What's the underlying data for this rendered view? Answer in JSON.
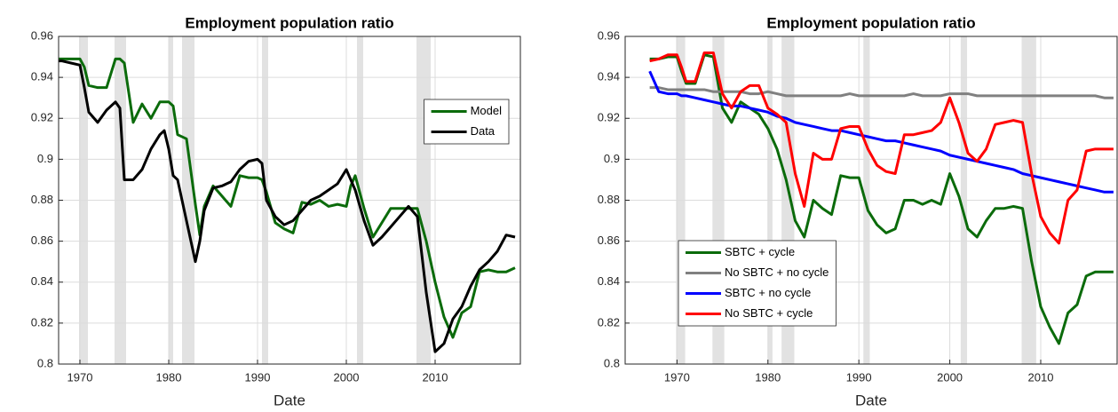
{
  "chart_data": [
    {
      "type": "line",
      "title": "Employment population ratio",
      "xlabel": "Date",
      "x": [
        1967.6,
        1968,
        1969,
        1970,
        1970.5,
        1971,
        1972,
        1973,
        1974,
        1974.5,
        1975,
        1976,
        1977,
        1978,
        1979,
        1979.5,
        1980,
        1980.5,
        1981,
        1982,
        1983,
        1983.5,
        1984,
        1985,
        1986,
        1987,
        1988,
        1989,
        1990,
        1990.5,
        1991,
        1992,
        1993,
        1994,
        1995,
        1996,
        1997,
        1998,
        1999,
        2000,
        2000.5,
        2001,
        2002,
        2003,
        2004,
        2005,
        2006,
        2007,
        2008,
        2009,
        2010,
        2011,
        2012,
        2013,
        2014,
        2015,
        2016,
        2017,
        2018,
        2019
      ],
      "series": [
        {
          "name": "Model",
          "color": "#0b6b0b",
          "values": [
            0.949,
            0.949,
            0.949,
            0.949,
            0.945,
            0.936,
            0.935,
            0.935,
            0.949,
            0.949,
            0.947,
            0.918,
            0.927,
            0.92,
            0.928,
            0.928,
            0.928,
            0.926,
            0.912,
            0.91,
            0.878,
            0.863,
            0.877,
            0.887,
            0.882,
            0.877,
            0.892,
            0.891,
            0.891,
            0.89,
            0.884,
            0.869,
            0.866,
            0.864,
            0.879,
            0.878,
            0.88,
            0.877,
            0.878,
            0.877,
            0.887,
            0.892,
            0.876,
            0.862,
            0.869,
            0.876,
            0.876,
            0.876,
            0.876,
            0.86,
            0.84,
            0.823,
            0.813,
            0.825,
            0.828,
            0.845,
            0.846,
            0.845,
            0.845,
            0.847
          ]
        },
        {
          "name": "Data",
          "color": "#000000",
          "values": [
            0.948,
            0.948,
            0.947,
            0.946,
            0.935,
            0.923,
            0.918,
            0.924,
            0.928,
            0.925,
            0.89,
            0.89,
            0.895,
            0.905,
            0.912,
            0.914,
            0.905,
            0.892,
            0.89,
            0.87,
            0.85,
            0.86,
            0.875,
            0.886,
            0.887,
            0.889,
            0.895,
            0.899,
            0.9,
            0.898,
            0.88,
            0.872,
            0.868,
            0.87,
            0.875,
            0.88,
            0.882,
            0.885,
            0.888,
            0.895,
            0.89,
            0.885,
            0.87,
            0.858,
            0.862,
            0.867,
            0.872,
            0.877,
            0.872,
            0.835,
            0.806,
            0.81,
            0.822,
            0.828,
            0.838,
            0.846,
            0.85,
            0.855,
            0.863,
            0.862
          ]
        }
      ],
      "shaded_periods": [
        [
          1969.9,
          1970.9
        ],
        [
          1973.9,
          1975.2
        ],
        [
          1980.0,
          1980.5
        ],
        [
          1981.5,
          1982.9
        ],
        [
          1990.5,
          1991.2
        ],
        [
          2001.2,
          2001.9
        ],
        [
          2007.9,
          2009.5
        ]
      ],
      "xlim": [
        1967.6,
        2019.6
      ],
      "ylim": [
        0.8,
        0.96
      ],
      "xticks": [
        1970,
        1980,
        1990,
        2000,
        2010
      ],
      "yticks": [
        0.8,
        0.82,
        0.84,
        0.86,
        0.88,
        0.9,
        0.92,
        0.94,
        0.96
      ],
      "grid": true,
      "legend": "northeast"
    },
    {
      "type": "line",
      "title": "Employment population ratio",
      "xlabel": "Date",
      "x": [
        1967,
        1968,
        1969,
        1970,
        1970.5,
        1971,
        1972,
        1973,
        1974,
        1975,
        1976,
        1977,
        1978,
        1979,
        1980,
        1981,
        1982,
        1983,
        1984,
        1985,
        1986,
        1987,
        1988,
        1989,
        1990,
        1991,
        1992,
        1993,
        1994,
        1995,
        1996,
        1997,
        1998,
        1999,
        2000,
        2001,
        2002,
        2003,
        2004,
        2005,
        2006,
        2007,
        2008,
        2009,
        2010,
        2011,
        2012,
        2013,
        2014,
        2015,
        2016,
        2017,
        2018
      ],
      "series": [
        {
          "name": "SBTC + cycle",
          "color": "#0b6b0b",
          "values": [
            0.949,
            0.949,
            0.95,
            0.95,
            0.943,
            0.937,
            0.937,
            0.951,
            0.95,
            0.925,
            0.918,
            0.928,
            0.925,
            0.922,
            0.915,
            0.905,
            0.89,
            0.87,
            0.862,
            0.88,
            0.876,
            0.873,
            0.892,
            0.891,
            0.891,
            0.875,
            0.868,
            0.864,
            0.866,
            0.88,
            0.88,
            0.878,
            0.88,
            0.878,
            0.893,
            0.882,
            0.866,
            0.862,
            0.87,
            0.876,
            0.876,
            0.877,
            0.876,
            0.85,
            0.828,
            0.818,
            0.81,
            0.825,
            0.829,
            0.843,
            0.845,
            0.845,
            0.845
          ]
        },
        {
          "name": "No SBTC + no cycle",
          "color": "#808080",
          "values": [
            0.935,
            0.935,
            0.934,
            0.934,
            0.934,
            0.934,
            0.934,
            0.934,
            0.933,
            0.933,
            0.933,
            0.933,
            0.932,
            0.932,
            0.933,
            0.932,
            0.931,
            0.931,
            0.931,
            0.931,
            0.931,
            0.931,
            0.931,
            0.932,
            0.931,
            0.931,
            0.931,
            0.931,
            0.931,
            0.931,
            0.932,
            0.931,
            0.931,
            0.931,
            0.932,
            0.932,
            0.932,
            0.931,
            0.931,
            0.931,
            0.931,
            0.931,
            0.931,
            0.931,
            0.931,
            0.931,
            0.931,
            0.931,
            0.931,
            0.931,
            0.931,
            0.93,
            0.93
          ]
        },
        {
          "name": "SBTC + no cycle",
          "color": "#0000ff",
          "values": [
            0.943,
            0.933,
            0.932,
            0.932,
            0.931,
            0.931,
            0.93,
            0.929,
            0.928,
            0.927,
            0.926,
            0.926,
            0.925,
            0.924,
            0.923,
            0.921,
            0.92,
            0.918,
            0.917,
            0.916,
            0.915,
            0.914,
            0.914,
            0.913,
            0.912,
            0.911,
            0.91,
            0.909,
            0.909,
            0.908,
            0.907,
            0.906,
            0.905,
            0.904,
            0.902,
            0.901,
            0.9,
            0.899,
            0.898,
            0.897,
            0.896,
            0.895,
            0.893,
            0.892,
            0.891,
            0.89,
            0.889,
            0.888,
            0.887,
            0.886,
            0.885,
            0.884,
            0.884
          ]
        },
        {
          "name": "No SBTC + cycle",
          "color": "#ff0000",
          "values": [
            0.948,
            0.949,
            0.951,
            0.951,
            0.945,
            0.938,
            0.938,
            0.952,
            0.952,
            0.932,
            0.925,
            0.933,
            0.936,
            0.936,
            0.925,
            0.922,
            0.918,
            0.893,
            0.877,
            0.903,
            0.9,
            0.9,
            0.915,
            0.916,
            0.916,
            0.905,
            0.897,
            0.894,
            0.893,
            0.912,
            0.912,
            0.913,
            0.914,
            0.918,
            0.93,
            0.918,
            0.903,
            0.899,
            0.905,
            0.917,
            0.918,
            0.919,
            0.918,
            0.893,
            0.872,
            0.864,
            0.859,
            0.88,
            0.885,
            0.904,
            0.905,
            0.905,
            0.905
          ]
        }
      ],
      "shaded_periods": [
        [
          1969.9,
          1970.9
        ],
        [
          1973.9,
          1975.2
        ],
        [
          1980.0,
          1980.5
        ],
        [
          1981.5,
          1982.9
        ],
        [
          1990.5,
          1991.2
        ],
        [
          2001.2,
          2001.9
        ],
        [
          2007.9,
          2009.5
        ]
      ],
      "xlim": [
        1964.3,
        2018.4
      ],
      "ylim": [
        0.8,
        0.96
      ],
      "xticks": [
        1970,
        1980,
        1990,
        2000,
        2010
      ],
      "yticks": [
        0.8,
        0.82,
        0.84,
        0.86,
        0.88,
        0.9,
        0.92,
        0.94,
        0.96
      ],
      "grid": true,
      "legend": "southwest"
    }
  ]
}
